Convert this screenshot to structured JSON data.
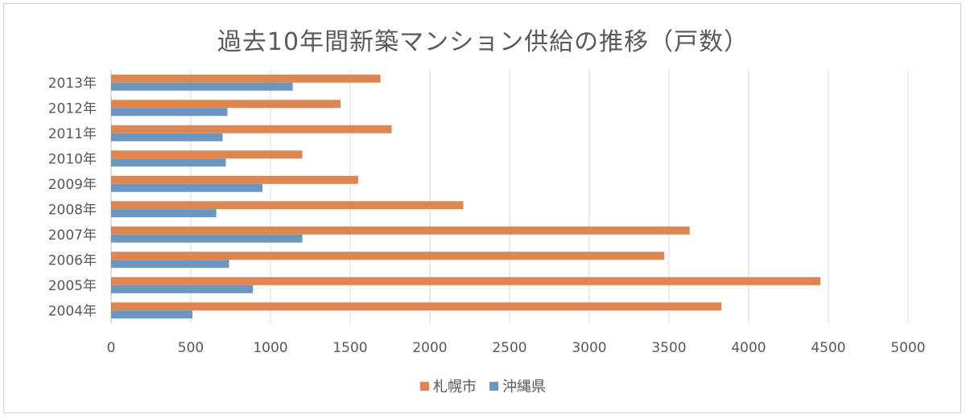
{
  "chart_data": {
    "type": "bar",
    "orientation": "horizontal",
    "title": "過去10年間新築マンション供給の推移（戸数）",
    "categories": [
      "2004年",
      "2005年",
      "2006年",
      "2007年",
      "2008年",
      "2009年",
      "2010年",
      "2011年",
      "2012年",
      "2013年"
    ],
    "series": [
      {
        "name": "札幌市",
        "color": "#dd8651",
        "values": [
          3830,
          4450,
          3470,
          3630,
          2210,
          1550,
          1200,
          1760,
          1440,
          1690
        ]
      },
      {
        "name": "沖縄県",
        "color": "#6b96c0",
        "values": [
          510,
          890,
          740,
          1200,
          660,
          950,
          720,
          700,
          730,
          1140
        ]
      }
    ],
    "xlim": [
      0,
      5000
    ],
    "xticks": [
      0,
      500,
      1000,
      1500,
      2000,
      2500,
      3000,
      3500,
      4000,
      4500,
      5000
    ],
    "grid": "vertical",
    "legend_position": "bottom"
  }
}
